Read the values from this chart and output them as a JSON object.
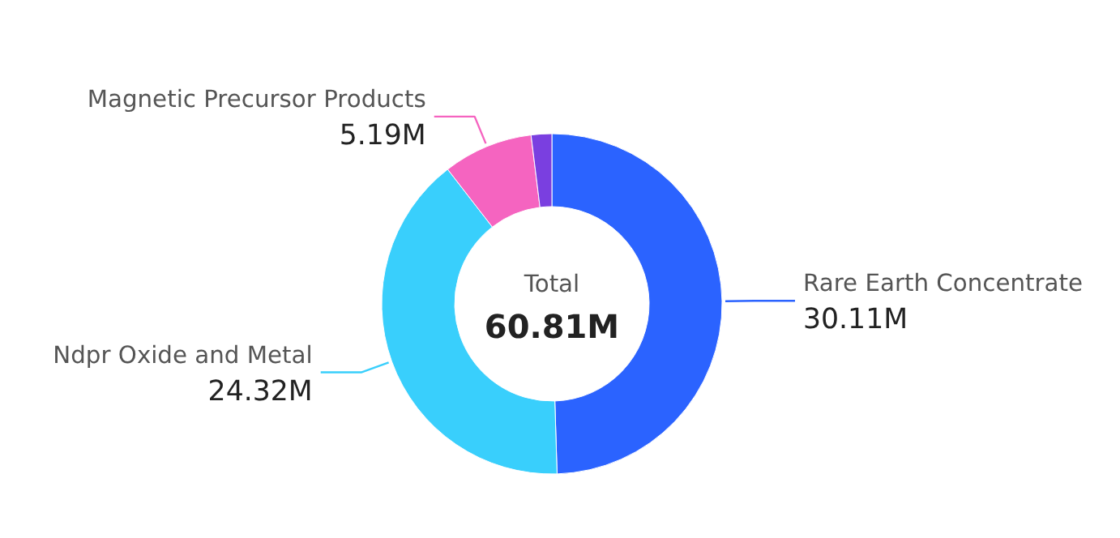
{
  "chart_data": {
    "type": "donut",
    "categories": [
      "Rare Earth Concentrate",
      "Ndpr Oxide and Metal",
      "Magnetic Precursor Products",
      null
    ],
    "values": [
      30.11,
      24.32,
      5.19,
      1.19
    ],
    "colors": [
      "#2b63ff",
      "#39cffc",
      "#f564c0",
      "#7a3fe0"
    ],
    "value_labels": [
      "30.11M",
      "24.32M",
      "5.19M",
      null
    ],
    "annotations": [
      "Total",
      "60.81M"
    ]
  }
}
